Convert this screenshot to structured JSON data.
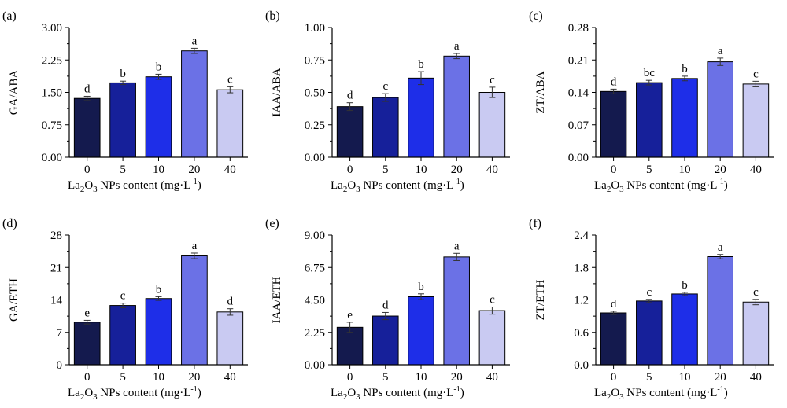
{
  "figure": {
    "x_tick_labels": [
      "0",
      "5",
      "10",
      "20",
      "40"
    ],
    "bar_colors": [
      "#141a4e",
      "#16209a",
      "#1e2ee8",
      "#6b71e6",
      "#c9caf2"
    ]
  },
  "chart_data": [
    {
      "type": "bar",
      "panel_label": "(a)",
      "ylabel": "GA/ABA",
      "xlabel_parts": [
        "La",
        "2",
        "O",
        "3",
        " NPs  content (mg·L",
        "-1",
        ")"
      ],
      "categories": [
        "0",
        "5",
        "10",
        "20",
        "40"
      ],
      "ylim": [
        0,
        3.0
      ],
      "yticks": [
        "0.00",
        "0.75",
        "1.50",
        "2.25",
        "3.00"
      ],
      "values": [
        1.36,
        1.72,
        1.86,
        2.46,
        1.56
      ],
      "errors": [
        0.05,
        0.04,
        0.06,
        0.06,
        0.07
      ],
      "letters": [
        "d",
        "b",
        "b",
        "a",
        "c"
      ]
    },
    {
      "type": "bar",
      "panel_label": "(b)",
      "ylabel": "IAA/ABA",
      "xlabel_parts": [
        "La",
        "2",
        "O",
        "3",
        " NPs  content (mg·L",
        "-1",
        ")"
      ],
      "categories": [
        "0",
        "5",
        "10",
        "20",
        "40"
      ],
      "ylim": [
        0,
        1.0
      ],
      "yticks": [
        "0.00",
        "0.25",
        "0.50",
        "0.75",
        "1.00"
      ],
      "values": [
        0.39,
        0.46,
        0.61,
        0.78,
        0.5
      ],
      "errors": [
        0.03,
        0.03,
        0.05,
        0.02,
        0.04
      ],
      "letters": [
        "d",
        "c",
        "b",
        "a",
        "c"
      ]
    },
    {
      "type": "bar",
      "panel_label": "(c)",
      "ylabel": "ZT/ABA",
      "xlabel_parts": [
        "La",
        "2",
        "O",
        "3",
        " NPs  content (mg·L",
        "-1",
        ")"
      ],
      "categories": [
        "0",
        "5",
        "10",
        "20",
        "40"
      ],
      "ylim": [
        0,
        0.28
      ],
      "yticks": [
        "0.00",
        "0.07",
        "0.14",
        "0.21",
        "0.28"
      ],
      "values": [
        0.142,
        0.161,
        0.17,
        0.206,
        0.158
      ],
      "errors": [
        0.005,
        0.005,
        0.005,
        0.008,
        0.006
      ],
      "letters": [
        "d",
        "bc",
        "b",
        "a",
        "c"
      ]
    },
    {
      "type": "bar",
      "panel_label": "(d)",
      "ylabel": "GA/ETH",
      "xlabel_parts": [
        "La",
        "2",
        "O",
        "3",
        " NPs  content (mg·L",
        "-1",
        ")"
      ],
      "categories": [
        "0",
        "5",
        "10",
        "20",
        "40"
      ],
      "ylim": [
        0,
        28
      ],
      "yticks": [
        "0",
        "7",
        "14",
        "21",
        "28"
      ],
      "values": [
        9.2,
        12.8,
        14.3,
        23.5,
        11.4
      ],
      "errors": [
        0.4,
        0.5,
        0.4,
        0.6,
        0.7
      ],
      "letters": [
        "e",
        "c",
        "b",
        "a",
        "d"
      ]
    },
    {
      "type": "bar",
      "panel_label": "(e)",
      "ylabel": "IAA/ETH",
      "xlabel_parts": [
        "La",
        "2",
        "O",
        "3",
        " NPs  content (mg·L",
        "-1",
        ")"
      ],
      "categories": [
        "0",
        "5",
        "10",
        "20",
        "40"
      ],
      "ylim": [
        0,
        9.0
      ],
      "yticks": [
        "0.00",
        "2.25",
        "4.50",
        "6.75",
        "9.00"
      ],
      "values": [
        2.6,
        3.38,
        4.72,
        7.48,
        3.76
      ],
      "errors": [
        0.35,
        0.25,
        0.2,
        0.25,
        0.25
      ],
      "letters": [
        "e",
        "d",
        "b",
        "a",
        "c"
      ]
    },
    {
      "type": "bar",
      "panel_label": "(f)",
      "ylabel": "ZT/ETH",
      "xlabel_parts": [
        "La",
        "2",
        "O",
        "3",
        " NPs  content (mg·L",
        "-1",
        ")"
      ],
      "categories": [
        "0",
        "5",
        "10",
        "20",
        "40"
      ],
      "ylim": [
        0,
        2.4
      ],
      "yticks": [
        "0.0",
        "0.6",
        "1.2",
        "1.8",
        "2.4"
      ],
      "values": [
        0.96,
        1.18,
        1.31,
        2.0,
        1.16
      ],
      "errors": [
        0.03,
        0.03,
        0.03,
        0.04,
        0.05
      ],
      "letters": [
        "d",
        "c",
        "b",
        "a",
        "c"
      ]
    }
  ]
}
